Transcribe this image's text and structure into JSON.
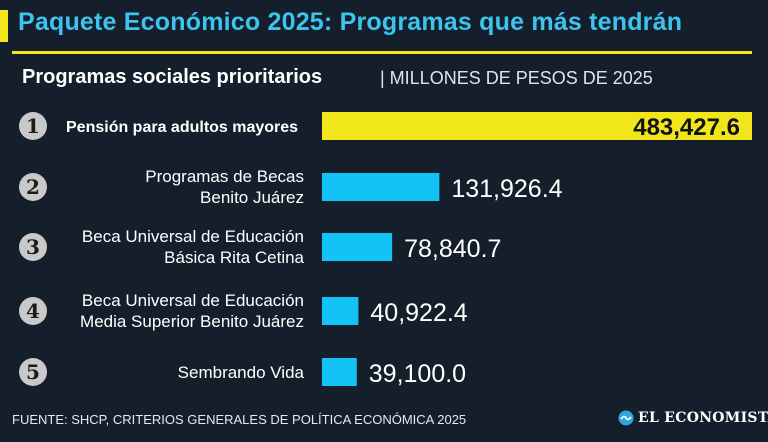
{
  "header": {
    "title": "Paquete Económico 2025: Programas que más tendrán",
    "subtitle": "Programas sociales prioritarios",
    "units": "| MILLONES DE PESOS DE 2025"
  },
  "colors": {
    "accent_yellow": "#f0e61a",
    "bar_blue": "#14c3f5",
    "title_blue": "#3cc4ee",
    "background": "#141f2b",
    "rank_circle": "#c9c9c9"
  },
  "chart_data": {
    "type": "bar",
    "orientation": "horizontal",
    "title": "Programas sociales prioritarios",
    "unit": "MILLONES DE PESOS DE 2025",
    "categories": [
      [
        "Pensión para adultos mayores"
      ],
      [
        "Programas de Becas",
        "Benito Juárez"
      ],
      [
        "Beca Universal de Educación",
        "Básica Rita Cetina"
      ],
      [
        "Beca Universal de Educación",
        "Media Superior Benito Juárez"
      ],
      [
        "Sembrando Vida"
      ]
    ],
    "ranks": [
      "1",
      "2",
      "3",
      "4",
      "5"
    ],
    "values": [
      483427.6,
      131926.4,
      78840.7,
      40922.4,
      39100.0
    ],
    "value_labels": [
      "483,427.6",
      "131,926.4",
      "78,840.7",
      "40,922.4",
      "39,100.0"
    ],
    "highlight_index": 0,
    "xlim": [
      0,
      483427.6
    ]
  },
  "footer": {
    "source": "FUENTE: SHCP, CRITERIOS GENERALES DE POLÍTICA ECONÓMICA 2025",
    "brand": "EL ECONOMISTA"
  }
}
